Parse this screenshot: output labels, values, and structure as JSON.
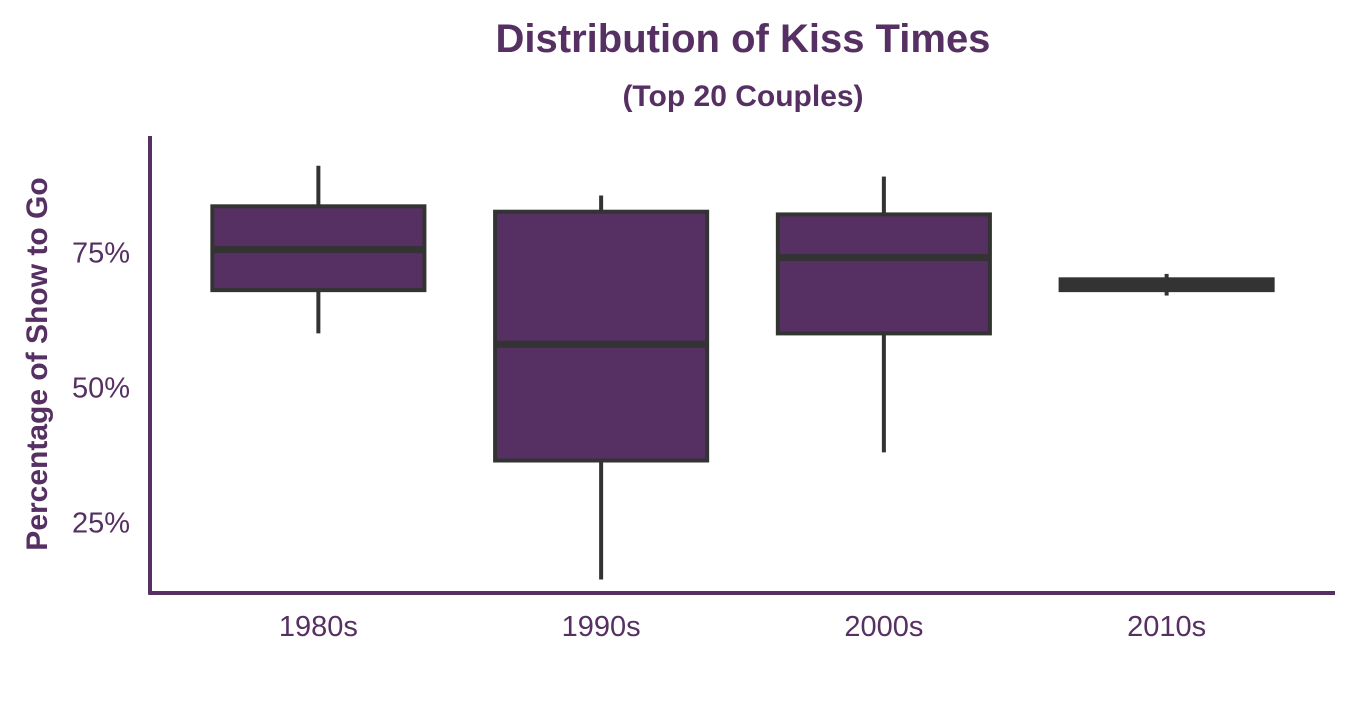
{
  "chart_data": {
    "type": "box",
    "title": "Distribution of Kiss Times",
    "subtitle": "(Top 20 Couples)",
    "xlabel": "",
    "ylabel": "Percentage of Show to Go",
    "categories": [
      "1980s",
      "1990s",
      "2000s",
      "2010s"
    ],
    "boxes": [
      {
        "category": "1980s",
        "whisker_low": 60,
        "q1": 68,
        "median": 75.5,
        "q3": 83.5,
        "whisker_high": 91
      },
      {
        "category": "1990s",
        "whisker_low": 14.5,
        "q1": 36.5,
        "median": 58,
        "q3": 82.5,
        "whisker_high": 85.5
      },
      {
        "category": "2000s",
        "whisker_low": 38,
        "q1": 60,
        "median": 74,
        "q3": 82,
        "whisker_high": 89
      },
      {
        "category": "2010s",
        "whisker_low": 67,
        "q1": 68,
        "median": 69,
        "q3": 70,
        "whisker_high": 71
      }
    ],
    "yticks": [
      25,
      50,
      75
    ],
    "ytick_labels": [
      "25%",
      "50%",
      "75%"
    ],
    "ylim": [
      12,
      96.5
    ],
    "grid": false,
    "colors": {
      "box_fill": "#563062",
      "box_edge": "#333333",
      "text": "#563062",
      "axis": "#563062"
    }
  }
}
